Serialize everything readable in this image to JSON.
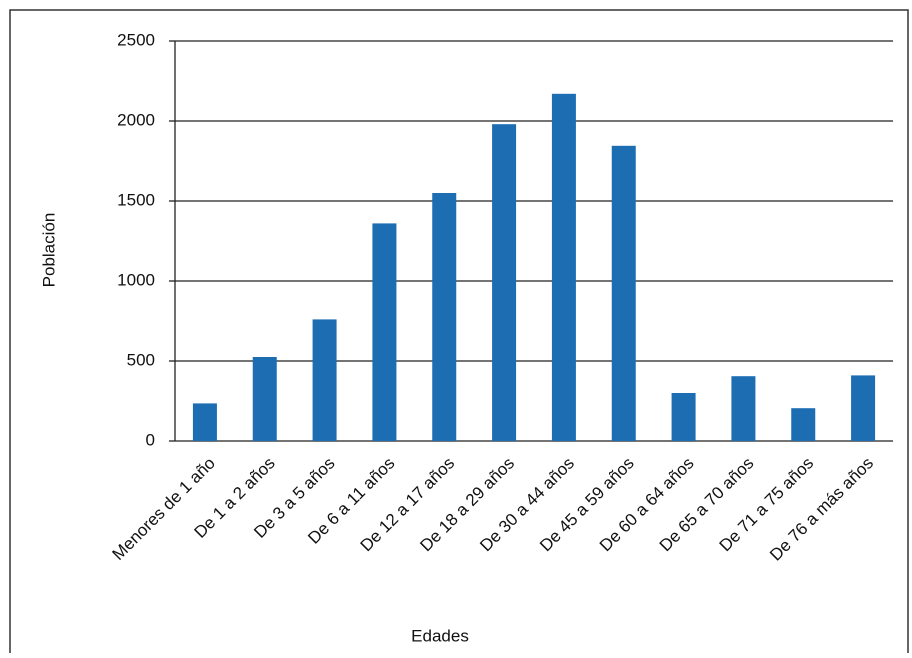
{
  "chart_data": {
    "type": "bar",
    "x_label": "Edades",
    "y_label": "Población",
    "categories": [
      "Menores de 1 año",
      "De 1 a 2 años",
      "De 3 a 5 años",
      "De 6 a 11 años",
      "De 12 a 17 años",
      "De 18 a 29 años",
      "De 30 a 44 años",
      "De 45 a 59 años",
      "De 60 a 64 años",
      "De 65 a 70 años",
      "De 71 a 75 años",
      "De 76 a más años"
    ],
    "values": [
      235,
      525,
      760,
      1360,
      1550,
      1980,
      2170,
      1845,
      300,
      405,
      205,
      410
    ],
    "color": "#1c6db2",
    "ylim": [
      0,
      2500
    ],
    "yticks": [
      0,
      500,
      1000,
      1500,
      2000,
      2500
    ],
    "grid": true
  }
}
